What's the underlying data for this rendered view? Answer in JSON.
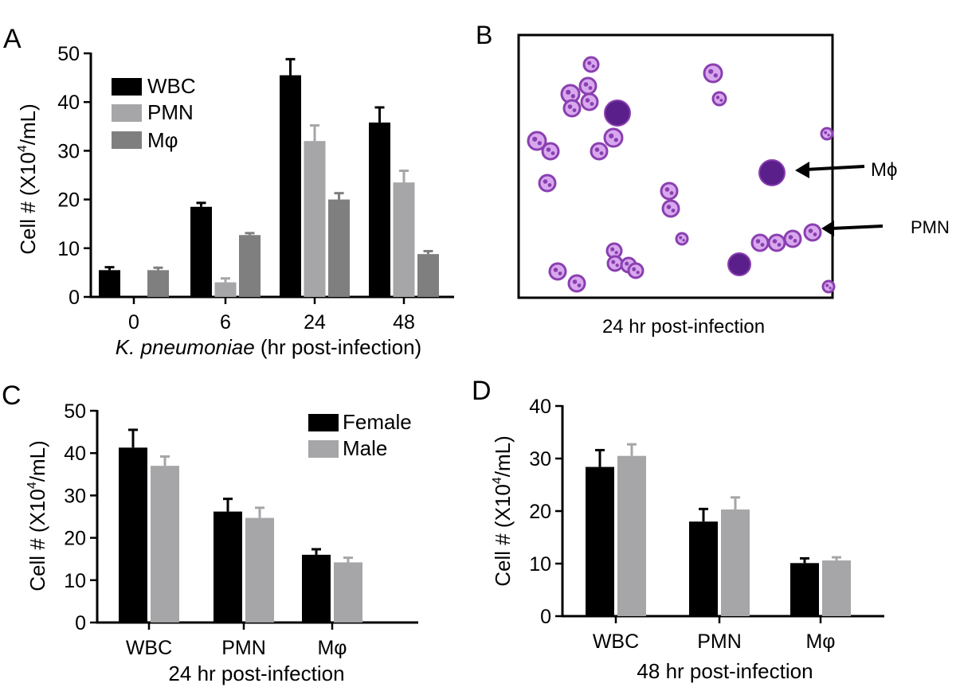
{
  "colors": {
    "wbc": "#000000",
    "pmn": "#a6a6a8",
    "mphi": "#7f7f7f",
    "female": "#000000",
    "male": "#a6a6a8",
    "cell": "#8a3fb0"
  },
  "panelA": {
    "label": "A",
    "chart_data": {
      "type": "bar",
      "categories": [
        "0",
        "6",
        "24",
        "48"
      ],
      "series": [
        {
          "name": "WBC",
          "values": [
            5.5,
            18.5,
            45.5,
            35.8
          ],
          "errors": [
            0.6,
            0.8,
            3.3,
            3.1
          ]
        },
        {
          "name": "PMN",
          "values": [
            0,
            3.0,
            32.0,
            23.5
          ],
          "errors": [
            0,
            0.8,
            3.2,
            2.4
          ]
        },
        {
          "name": "Mφ",
          "values": [
            5.5,
            12.7,
            20.0,
            8.8
          ],
          "errors": [
            0.5,
            0.4,
            1.3,
            0.6
          ]
        }
      ],
      "ylabel_prefix": "Cell # (X10",
      "ylabel_sup": "4",
      "ylabel_suffix": "/mL)",
      "xlabel_italic": "K. pneumoniae",
      "xlabel_rest": " (hr post-infection)",
      "ylim": [
        0,
        50
      ],
      "yticks": [
        "0",
        "10",
        "20",
        "30",
        "40",
        "50"
      ],
      "legend_position": "top-left"
    }
  },
  "panelB": {
    "label": "B",
    "caption": "24 hr post-infection",
    "annotations": [
      {
        "label": "Mϕ"
      },
      {
        "label": "PMN"
      }
    ]
  },
  "panelC": {
    "label": "C",
    "chart_data": {
      "type": "bar",
      "categories": [
        "WBC",
        "PMN",
        "Mφ"
      ],
      "series": [
        {
          "name": "Female",
          "values": [
            41.3,
            26.2,
            16.0
          ],
          "errors": [
            4.2,
            3.0,
            1.3
          ]
        },
        {
          "name": "Male",
          "values": [
            37.0,
            24.7,
            14.2
          ],
          "errors": [
            2.2,
            2.4,
            1.1
          ]
        }
      ],
      "ylabel_prefix": "Cell # (X10",
      "ylabel_sup": "4",
      "ylabel_suffix": "/mL)",
      "xlabel": "24 hr post-infection",
      "ylim": [
        0,
        50
      ],
      "yticks": [
        "0",
        "10",
        "20",
        "30",
        "40",
        "50"
      ],
      "legend_position": "top-right"
    }
  },
  "panelD": {
    "label": "D",
    "chart_data": {
      "type": "bar",
      "categories": [
        "WBC",
        "PMN",
        "Mφ"
      ],
      "series": [
        {
          "name": "Female",
          "values": [
            28.4,
            18.0,
            10.1
          ],
          "errors": [
            3.2,
            2.4,
            0.9
          ]
        },
        {
          "name": "Male",
          "values": [
            30.5,
            20.3,
            10.6
          ],
          "errors": [
            2.2,
            2.3,
            0.6
          ]
        }
      ],
      "ylabel_prefix": "Cell # (X10",
      "ylabel_sup": "4",
      "ylabel_suffix": "/mL)",
      "xlabel": "48 hr post-infection",
      "ylim": [
        0,
        40
      ],
      "yticks": [
        "0",
        "10",
        "20",
        "30",
        "40"
      ],
      "legend": false
    }
  }
}
